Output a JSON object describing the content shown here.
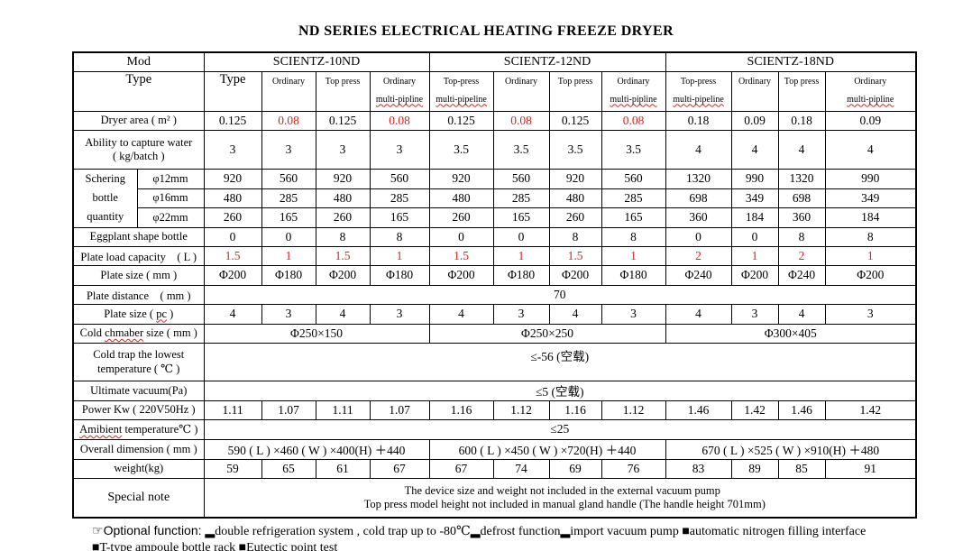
{
  "title": "ND SERIES ELECTRICAL HEATING FREEZE DRYER",
  "colors": {
    "accent_red": "#e02020",
    "border": "#000000",
    "background": "#ffffff"
  },
  "table": {
    "mod": {
      "label": "Mod",
      "models": [
        "SCIENTZ-10ND",
        "SCIENTZ-12ND",
        "SCIENTZ-18ND"
      ]
    },
    "type": {
      "label": "Type",
      "cols": [
        {
          "l1": "Type"
        },
        {
          "l1": "Ordinary"
        },
        {
          "l1": "Top press"
        },
        {
          "l1": "Ordinary",
          "l2": "multi-pipline"
        },
        {
          "l1": "Top-press",
          "l2": "multi-pipeline"
        },
        {
          "l1": "Ordinary"
        },
        {
          "l1": "Top press"
        },
        {
          "l1": "Ordinary",
          "l2": "multi-pipline"
        },
        {
          "l1": "Top-press",
          "l2": "multi-pipeline"
        },
        {
          "l1": "Ordinary"
        },
        {
          "l1": "Top press"
        },
        {
          "l1": "Ordinary",
          "l2": "multi-pipline"
        }
      ]
    },
    "rows": {
      "dryer_area": {
        "label": "Dryer area ( m² )",
        "values": [
          "0.125",
          "0.08",
          "0.125",
          "0.08",
          "0.125",
          "0.08",
          "0.125",
          "0.08",
          "0.18",
          "0.09",
          "0.18",
          "0.09"
        ]
      },
      "capture_water": {
        "label1": "Ability to capture water",
        "label2": "( kg/batch )",
        "values": [
          "3",
          "3",
          "3",
          "3",
          "3.5",
          "3.5",
          "3.5",
          "3.5",
          "4",
          "4",
          "4",
          "4"
        ]
      },
      "schering": {
        "label1": "Schering",
        "label2": "bottle",
        "label3": "quantity",
        "d12": {
          "label": "φ12mm",
          "values": [
            "920",
            "560",
            "920",
            "560",
            "920",
            "560",
            "920",
            "560",
            "1320",
            "990",
            "1320",
            "990"
          ]
        },
        "d16": {
          "label": "φ16mm",
          "values": [
            "480",
            "285",
            "480",
            "285",
            "480",
            "285",
            "480",
            "285",
            "698",
            "349",
            "698",
            "349"
          ]
        },
        "d22": {
          "label": "φ22mm",
          "values": [
            "260",
            "165",
            "260",
            "165",
            "260",
            "165",
            "260",
            "165",
            "360",
            "184",
            "360",
            "184"
          ]
        }
      },
      "eggplant": {
        "label": "Eggplant shape bottle",
        "values": [
          "0",
          "0",
          "8",
          "8",
          "0",
          "0",
          "8",
          "8",
          "0",
          "0",
          "8",
          "8"
        ]
      },
      "plate_load": {
        "label": "Plate load capacity　( L )",
        "values": [
          "1.5",
          "1",
          "1.5",
          "1",
          "1.5",
          "1",
          "1.5",
          "1",
          "2",
          "1",
          "2",
          "1"
        ]
      },
      "plate_size_mm": {
        "label": "Plate size ( mm )",
        "values": [
          "Φ200",
          "Φ180",
          "Φ200",
          "Φ180",
          "Φ200",
          "Φ180",
          "Φ200",
          "Φ180",
          "Φ240",
          "Φ200",
          "Φ240",
          "Φ200"
        ]
      },
      "plate_distance": {
        "label": "Plate distance　( mm )",
        "value": "70"
      },
      "plate_size_pc": {
        "label": {
          "pre": "Plate size ( ",
          "wavy": "pc",
          "post": " )"
        },
        "values": [
          "4",
          "3",
          "4",
          "3",
          "4",
          "3",
          "4",
          "3",
          "4",
          "3",
          "4",
          "3"
        ]
      },
      "cold_chamber": {
        "label": {
          "pre": "Cold ",
          "wavy": "chmaber",
          "post": " size ( mm )"
        },
        "values": [
          "Φ250×150",
          "Φ250×250",
          "Φ300×405"
        ]
      },
      "cold_trap": {
        "label1": "Cold trap the lowest",
        "label2": "temperature ( ℃ )",
        "value": "≤-56 (空载)"
      },
      "vacuum": {
        "label": "Ultimate vacuum(Pa)",
        "value": "≤5 (空载)"
      },
      "power": {
        "label": "Power Kw ( 220V50Hz )",
        "values": [
          "1.11",
          "1.07",
          "1.11",
          "1.07",
          "1.16",
          "1.12",
          "1.16",
          "1.12",
          "1.46",
          "1.42",
          "1.46",
          "1.42"
        ]
      },
      "ambient": {
        "label": {
          "pre": "",
          "wavy": "Amibient",
          "post": " temperature℃ )"
        },
        "value": "≤25"
      },
      "overall": {
        "label": "Overall dimension ( mm )",
        "values": [
          "590 ( L ) ×460 ( W ) ×400(H) ＋440",
          "600 ( L ) ×450 ( W ) ×720(H) ＋440",
          "670 ( L ) ×525 ( W ) ×910(H) ＋480"
        ]
      },
      "weight": {
        "label": "weight(kg)",
        "values": [
          "59",
          "65",
          "61",
          "67",
          "67",
          "74",
          "69",
          "76",
          "83",
          "89",
          "85",
          "91"
        ]
      },
      "special": {
        "label": "Special note",
        "line1": "The device size and weight not included in the external vacuum pump",
        "line2": "Top press model height not included in manual gland handle (The handle height 701mm)"
      }
    }
  },
  "footer": {
    "pointer": "☞",
    "lead": "Optional function: ",
    "line1_rest": "▂double refrigeration system , cold trap up to -80℃▂defrost function▂import vacuum pump ■automatic nitrogen filling interface",
    "line2": "■T-type ampoule bottle rack ■Eutectic point test"
  }
}
